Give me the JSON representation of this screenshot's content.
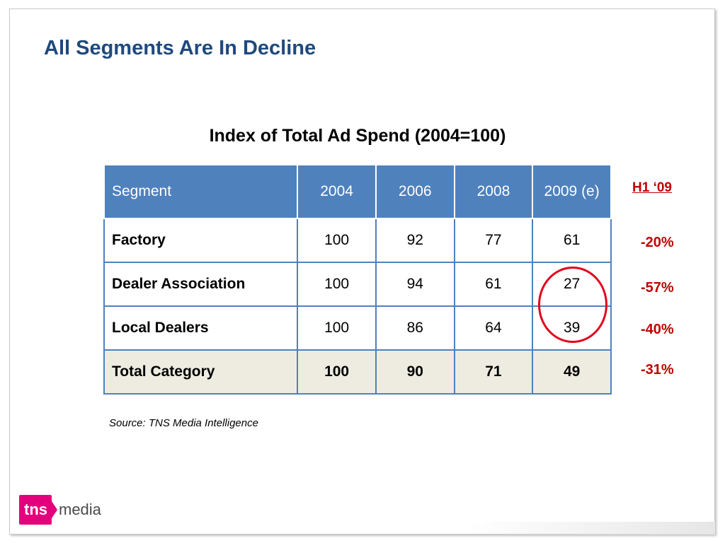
{
  "slide": {
    "title": "All Segments Are In Decline",
    "table_title": "Index of Total Ad Spend (2004=100)",
    "source": "Source: TNS Media Intelligence"
  },
  "table": {
    "headers": [
      "Segment",
      "2004",
      "2006",
      "2008",
      "2009 (e)"
    ],
    "rows": [
      [
        "Factory",
        "100",
        "92",
        "77",
        "61"
      ],
      [
        "Dealer Association",
        "100",
        "94",
        "61",
        "27"
      ],
      [
        "Local Dealers",
        "100",
        "86",
        "64",
        "39"
      ],
      [
        "Total Category",
        "100",
        "90",
        "71",
        "49"
      ]
    ]
  },
  "h1_column": {
    "label": "H1 ‘09",
    "values": [
      "-20%",
      "-57%",
      "-40%",
      "-31%"
    ]
  },
  "highlight": {
    "note": "red circle around 2009 (e) values for Dealer Association and Local Dealers",
    "color": "#e3001b"
  },
  "logo": {
    "mark": "tns",
    "text": "media",
    "color": "#e4007c"
  },
  "colors": {
    "title": "#1f497d",
    "header_bg": "#4f81bd",
    "total_bg": "#eeece1",
    "accent_red": "#c00000"
  }
}
